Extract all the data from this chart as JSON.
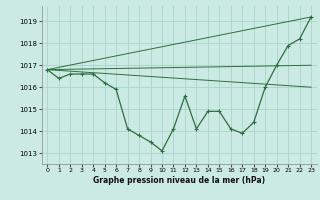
{
  "title": "Graphe pression niveau de la mer (hPa)",
  "background_color": "#cceae4",
  "grid_color": "#aad4cc",
  "line_color": "#2d6e3e",
  "xlim": [
    -0.5,
    23.5
  ],
  "ylim": [
    1012.5,
    1019.7
  ],
  "yticks": [
    1013,
    1014,
    1015,
    1016,
    1017,
    1018,
    1019
  ],
  "xticks": [
    0,
    1,
    2,
    3,
    4,
    5,
    6,
    7,
    8,
    9,
    10,
    11,
    12,
    13,
    14,
    15,
    16,
    17,
    18,
    19,
    20,
    21,
    22,
    23
  ],
  "series": [
    {
      "x": [
        0,
        23
      ],
      "y": [
        1016.8,
        1019.2
      ]
    },
    {
      "x": [
        0,
        23
      ],
      "y": [
        1016.8,
        1017.0
      ]
    },
    {
      "x": [
        0,
        23
      ],
      "y": [
        1016.8,
        1016.0
      ]
    },
    {
      "x": [
        0,
        1,
        2,
        3,
        4,
        5,
        6,
        7,
        8,
        9,
        10,
        11,
        12,
        13,
        14,
        15,
        16,
        17,
        18,
        19,
        20,
        21,
        22,
        23
      ],
      "y": [
        1016.8,
        1016.4,
        1016.6,
        1016.6,
        1016.6,
        1016.2,
        1015.9,
        1014.1,
        1013.8,
        1013.5,
        1013.1,
        1014.1,
        1015.6,
        1014.1,
        1014.9,
        1014.9,
        1014.1,
        1013.9,
        1014.4,
        1016.0,
        1017.0,
        1017.9,
        1018.2,
        1019.2
      ]
    }
  ]
}
